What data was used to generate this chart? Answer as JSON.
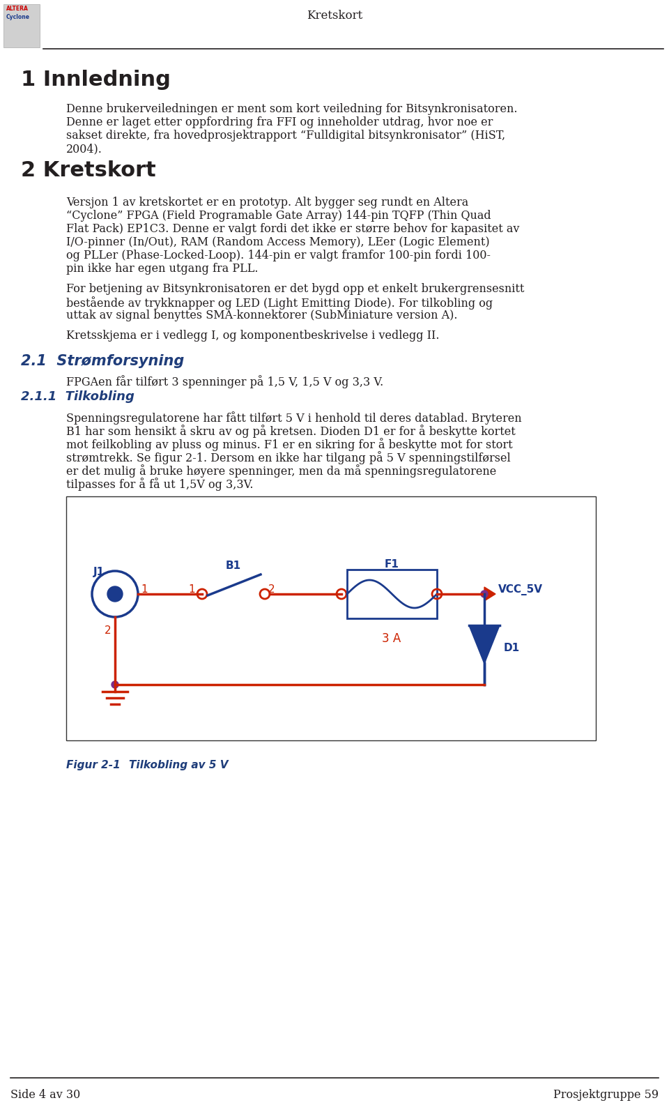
{
  "header_title": "Kretskort",
  "footer_left": "Side 4 av 30",
  "footer_right": "Prosjektgruppe 59",
  "section1_title": "1 Innledning",
  "section1_para1": "Denne brukerveiledningen er ment som kort veiledning for Bitsynkronisatoren.",
  "section1_para2_l1": "Denne er laget etter oppfordring fra FFI og inneholder utdrag, hvor noe er",
  "section1_para2_l2": "sakset direkte, fra hovedprosjektrapport “Fulldigital bitsynkronisator” (HiST,",
  "section1_para2_l3": "2004).",
  "section2_title": "2 Kretskort",
  "section2_p1_l1": "Versjon 1 av kretskortet er en prototyp. Alt bygger seg rundt en Altera",
  "section2_p1_l2": "“Cyclone” FPGA (Field Programable Gate Array) 144-pin TQFP (Thin Quad",
  "section2_p1_l3": "Flat Pack) EP1C3. Denne er valgt fordi det ikke er større behov for kapasitet av",
  "section2_p1_l4": "I/O-pinner (In/Out), RAM (Random Access Memory), LEer (Logic Element)",
  "section2_p1_l5": "og PLLer (Phase-Locked-Loop). 144-pin er valgt framfor 100-pin fordi 100-",
  "section2_p1_l6": "pin ikke har egen utgang fra PLL.",
  "section2_p2_l1": "For betjening av Bitsynkronisatoren er det bygd opp et enkelt brukergrensesnitt",
  "section2_p2_l2": "bestående av trykknapper og LED (Light Emitting Diode). For tilkobling og",
  "section2_p2_l3": "uttak av signal benyttes SMA-konnektorer (SubMiniature version A).",
  "section2_p3": "Kretsskjema er i vedlegg I, og komponentbeskrivelse i vedlegg II.",
  "section21_title": "2.1  Strømforsyning",
  "section21_text": "FPGAen får tilført 3 spenninger på 1,5 V, 1,5 V og 3,3 V.",
  "section211_title": "2.1.1  Tilkobling",
  "section211_p1_l1": "Spenningsregulatorene har fått tilført 5 V i henhold til deres datablad. Bryteren",
  "section211_p1_l2": "B1 har som hensikt å skru av og på kretsen. Dioden D1 er for å beskytte kortet",
  "section211_p1_l3": "mot feilkobling av pluss og minus. F1 er en sikring for å beskytte mot for stort",
  "section211_p1_l4": "strømtrekk. Se figur 2-1. Dersom en ikke har tilgang på 5 V spenningstilførsel",
  "section211_p1_l5": "er det mulig å bruke høyere spenninger, men da må spenningsregulatorene",
  "section211_p1_l6": "tilpasses for å få ut 1,5V og 3,3V.",
  "fig_caption_label": "Figur 2-1",
  "fig_caption_text": "Tilkobling av 5 V",
  "bg_color": "#ffffff",
  "text_color": "#231f20",
  "heading_color": "#231f20",
  "subheading_color": "#1f3d7a",
  "circuit_red": "#cc2200",
  "circuit_blue": "#1a3a8c",
  "circuit_purple": "#7b2d8b"
}
